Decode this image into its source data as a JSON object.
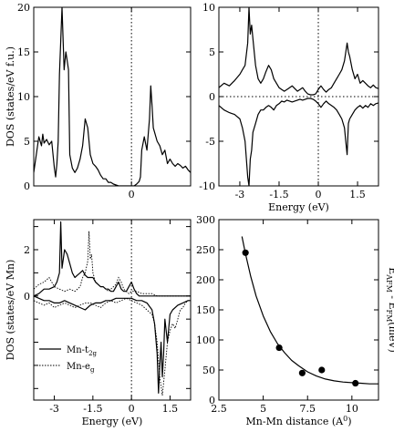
{
  "chart_data": [
    {
      "panel": "top-left",
      "type": "line",
      "ylabel": "DOS (states/eV f.u.)",
      "xlim": [
        -3.8,
        2.3
      ],
      "ylim": [
        0,
        20
      ],
      "xticks": [
        {
          "v": 0,
          "t": "0"
        }
      ],
      "yticks": [
        {
          "v": 0,
          "t": "0"
        },
        {
          "v": 5,
          "t": "5"
        },
        {
          "v": 10,
          "t": "10"
        },
        {
          "v": 15,
          "t": "15"
        },
        {
          "v": 20,
          "t": "20"
        }
      ],
      "vline": 0,
      "series": [
        {
          "style": "solid",
          "x": [
            -3.8,
            -3.7,
            -3.6,
            -3.5,
            -3.45,
            -3.4,
            -3.3,
            -3.2,
            -3.1,
            -3.0,
            -2.95,
            -2.9,
            -2.85,
            -2.8,
            -2.7,
            -2.62,
            -2.55,
            -2.5,
            -2.45,
            -2.4,
            -2.3,
            -2.2,
            -2.1,
            -2.0,
            -1.9,
            -1.8,
            -1.7,
            -1.6,
            -1.5,
            -1.4,
            -1.3,
            -1.2,
            -1.1,
            -1.0,
            -0.9,
            -0.8,
            -0.7,
            -0.6,
            -0.5,
            -0.4,
            -0.3,
            -0.2,
            -0.1,
            0.0,
            0.1,
            0.2,
            0.3,
            0.35,
            0.4,
            0.5,
            0.6,
            0.7,
            0.75,
            0.8,
            0.85,
            0.9,
            1.0,
            1.1,
            1.2,
            1.3,
            1.4,
            1.5,
            1.6,
            1.7,
            1.8,
            1.9,
            2.0,
            2.1,
            2.2,
            2.3
          ],
          "y": [
            1.5,
            3.5,
            5.5,
            4.5,
            5.8,
            4.8,
            5.2,
            4.6,
            5.0,
            2.0,
            1.0,
            2.5,
            5.0,
            12.5,
            20.0,
            13.0,
            15.0,
            14.0,
            13.0,
            3.5,
            2.0,
            1.5,
            2.0,
            3.0,
            4.5,
            7.5,
            6.5,
            3.5,
            2.5,
            2.2,
            1.8,
            1.2,
            0.8,
            0.8,
            0.4,
            0.4,
            0.2,
            0.1,
            0.0,
            0.0,
            0.0,
            0.0,
            0.0,
            0.0,
            0.0,
            0.2,
            0.5,
            1.0,
            4.0,
            5.5,
            4.0,
            7.5,
            11.2,
            9.0,
            6.5,
            6.0,
            5.0,
            4.5,
            3.5,
            4.0,
            2.5,
            3.0,
            2.5,
            2.2,
            2.5,
            2.3,
            2.0,
            2.2,
            1.8,
            1.5
          ]
        }
      ]
    },
    {
      "panel": "top-right",
      "type": "line",
      "xlabel": "Energy (eV)",
      "xlim": [
        -3.8,
        2.3
      ],
      "ylim": [
        -10,
        10
      ],
      "xticks": [
        {
          "v": -3,
          "t": "-3"
        },
        {
          "v": -1.5,
          "t": "-1.5"
        },
        {
          "v": 0,
          "t": "0"
        },
        {
          "v": 1.5,
          "t": "1.5"
        }
      ],
      "yticks": [
        {
          "v": -10,
          "t": "-10"
        },
        {
          "v": -5,
          "t": "-5"
        },
        {
          "v": 0,
          "t": "0"
        },
        {
          "v": 5,
          "t": "5"
        },
        {
          "v": 10,
          "t": "10"
        }
      ],
      "vline": 0,
      "hline": 0,
      "series": [
        {
          "style": "solid",
          "x": [
            -3.8,
            -3.6,
            -3.4,
            -3.2,
            -3.0,
            -2.9,
            -2.8,
            -2.7,
            -2.65,
            -2.6,
            -2.55,
            -2.5,
            -2.4,
            -2.3,
            -2.2,
            -2.1,
            -2.0,
            -1.9,
            -1.8,
            -1.7,
            -1.6,
            -1.5,
            -1.4,
            -1.3,
            -1.2,
            -1.1,
            -1.0,
            -0.9,
            -0.8,
            -0.7,
            -0.6,
            -0.5,
            -0.4,
            -0.3,
            -0.2,
            -0.1,
            0.0,
            0.1,
            0.2,
            0.3,
            0.4,
            0.5,
            0.6,
            0.7,
            0.8,
            0.9,
            1.0,
            1.1,
            1.15,
            1.2,
            1.3,
            1.4,
            1.5,
            1.6,
            1.7,
            1.8,
            1.9,
            2.0,
            2.1,
            2.2,
            2.3
          ],
          "y": [
            1.0,
            1.5,
            1.2,
            1.8,
            2.5,
            3.0,
            3.5,
            6.0,
            10.0,
            7.0,
            8.0,
            6.5,
            3.5,
            2.0,
            1.5,
            2.0,
            2.8,
            3.5,
            3.0,
            2.0,
            1.5,
            1.0,
            0.8,
            0.6,
            0.8,
            1.0,
            1.2,
            0.9,
            0.6,
            0.8,
            1.0,
            0.6,
            0.3,
            0.2,
            0.2,
            0.3,
            0.8,
            1.2,
            0.8,
            0.5,
            0.8,
            1.0,
            1.5,
            2.0,
            2.5,
            3.0,
            4.0,
            6.0,
            5.0,
            4.5,
            3.0,
            2.0,
            2.5,
            1.5,
            1.8,
            1.5,
            1.2,
            1.0,
            1.3,
            1.0,
            0.9
          ]
        },
        {
          "style": "solid",
          "x": [
            -3.8,
            -3.6,
            -3.4,
            -3.2,
            -3.0,
            -2.9,
            -2.8,
            -2.7,
            -2.65,
            -2.6,
            -2.55,
            -2.5,
            -2.4,
            -2.3,
            -2.2,
            -2.1,
            -2.0,
            -1.9,
            -1.8,
            -1.7,
            -1.6,
            -1.5,
            -1.4,
            -1.3,
            -1.2,
            -1.1,
            -1.0,
            -0.9,
            -0.8,
            -0.7,
            -0.6,
            -0.5,
            -0.4,
            -0.3,
            -0.2,
            -0.1,
            0.0,
            0.1,
            0.2,
            0.3,
            0.4,
            0.5,
            0.6,
            0.7,
            0.8,
            0.9,
            1.0,
            1.05,
            1.1,
            1.15,
            1.2,
            1.3,
            1.4,
            1.5,
            1.6,
            1.7,
            1.8,
            1.9,
            2.0,
            2.1,
            2.2,
            2.3
          ],
          "y": [
            -1.0,
            -1.5,
            -1.8,
            -2.0,
            -2.5,
            -3.5,
            -5.0,
            -9.0,
            -10.0,
            -7.0,
            -6.0,
            -4.0,
            -3.0,
            -2.0,
            -1.5,
            -1.5,
            -1.2,
            -1.0,
            -1.2,
            -1.5,
            -1.0,
            -0.8,
            -0.5,
            -0.6,
            -0.4,
            -0.5,
            -0.6,
            -0.5,
            -0.4,
            -0.3,
            -0.4,
            -0.3,
            -0.2,
            -0.2,
            -0.3,
            -0.5,
            -0.8,
            -1.2,
            -0.8,
            -0.5,
            -0.8,
            -1.0,
            -1.2,
            -1.5,
            -2.0,
            -2.5,
            -3.5,
            -5.0,
            -6.5,
            -3.0,
            -2.5,
            -2.0,
            -1.5,
            -1.2,
            -1.0,
            -1.3,
            -1.0,
            -1.2,
            -0.8,
            -1.0,
            -0.8,
            -0.7
          ]
        }
      ]
    },
    {
      "panel": "bottom-left",
      "type": "line",
      "xlabel": "Energy (eV)",
      "ylabel": "DOS (states/eV Mn)",
      "xlim": [
        -3.8,
        2.3
      ],
      "ylim": [
        -4.5,
        3.3
      ],
      "xticks": [
        {
          "v": -3,
          "t": "-3"
        },
        {
          "v": -1.5,
          "t": "-1.5"
        },
        {
          "v": 0,
          "t": "0"
        },
        {
          "v": 1.5,
          "t": "1.5"
        }
      ],
      "yticks": [
        {
          "v": -4,
          "t": ""
        },
        {
          "v": -3,
          "t": ""
        },
        {
          "v": -2,
          "t": ""
        },
        {
          "v": -1,
          "t": ""
        },
        {
          "v": 0,
          "t": "0"
        },
        {
          "v": 1,
          "t": ""
        },
        {
          "v": 2,
          "t": "2"
        },
        {
          "v": 3,
          "t": ""
        }
      ],
      "vline": 0,
      "legend": [
        "Mn-t2g",
        "Mn-eg"
      ],
      "series": [
        {
          "name": "Mn-t2g",
          "style": "solid",
          "x": [
            -3.8,
            -3.6,
            -3.4,
            -3.2,
            -3.0,
            -2.9,
            -2.8,
            -2.75,
            -2.7,
            -2.65,
            -2.6,
            -2.5,
            -2.4,
            -2.3,
            -2.2,
            -2.1,
            -2.0,
            -1.9,
            -1.8,
            -1.7,
            -1.6,
            -1.5,
            -1.4,
            -1.3,
            -1.2,
            -1.1,
            -1.0,
            -0.9,
            -0.8,
            -0.7,
            -0.6,
            -0.5,
            -0.4,
            -0.3,
            -0.2,
            -0.1,
            0.0,
            0.1,
            0.2,
            0.3,
            0.4,
            0.5,
            0.6,
            0.7,
            0.8,
            0.9,
            1.0,
            1.1,
            1.2,
            1.3,
            1.4,
            1.5,
            1.6,
            1.7,
            1.8,
            1.9,
            2.0,
            2.1,
            2.2,
            2.3
          ],
          "y": [
            0.0,
            0.1,
            0.3,
            0.3,
            0.4,
            0.6,
            1.0,
            3.2,
            1.2,
            1.6,
            2.0,
            1.8,
            1.4,
            1.0,
            0.8,
            0.9,
            1.0,
            1.1,
            0.9,
            0.8,
            0.8,
            0.8,
            0.6,
            0.5,
            0.4,
            0.4,
            0.3,
            0.3,
            0.2,
            0.2,
            0.4,
            0.6,
            0.3,
            0.2,
            0.2,
            0.4,
            0.6,
            0.3,
            0.1,
            0.0,
            0.0,
            0.0,
            0.0,
            0.0,
            0.0,
            0.0,
            0.0,
            0.0,
            0.0,
            0.0,
            0.0,
            0.0,
            0.0,
            0.0,
            0.0,
            0.0,
            0.0,
            0.0,
            0.0,
            0.0
          ]
        },
        {
          "name": "Mn-t2g",
          "style": "solid",
          "x": [
            -3.8,
            -3.6,
            -3.4,
            -3.2,
            -3.0,
            -2.8,
            -2.6,
            -2.4,
            -2.2,
            -2.0,
            -1.8,
            -1.6,
            -1.4,
            -1.2,
            -1.0,
            -0.8,
            -0.6,
            -0.4,
            -0.2,
            0.0,
            0.2,
            0.4,
            0.6,
            0.8,
            0.9,
            1.0,
            1.05,
            1.1,
            1.15,
            1.2,
            1.25,
            1.3,
            1.35,
            1.4,
            1.5,
            1.6,
            1.8,
            2.0,
            2.2,
            2.3
          ],
          "y": [
            0.0,
            -0.1,
            -0.2,
            -0.2,
            -0.3,
            -0.3,
            -0.2,
            -0.3,
            -0.4,
            -0.5,
            -0.6,
            -0.4,
            -0.3,
            -0.3,
            -0.2,
            -0.2,
            -0.1,
            -0.1,
            -0.1,
            -0.1,
            -0.2,
            -0.2,
            -0.3,
            -0.6,
            -1.2,
            -2.5,
            -4.2,
            -3.0,
            -2.0,
            -3.5,
            -2.5,
            -1.0,
            -1.5,
            -2.0,
            -0.8,
            -0.6,
            -0.4,
            -0.3,
            -0.2,
            -0.2
          ]
        },
        {
          "name": "Mn-eg",
          "style": "dotted",
          "x": [
            -3.8,
            -3.6,
            -3.4,
            -3.2,
            -3.0,
            -2.8,
            -2.6,
            -2.4,
            -2.2,
            -2.0,
            -1.9,
            -1.8,
            -1.7,
            -1.65,
            -1.6,
            -1.55,
            -1.5,
            -1.4,
            -1.3,
            -1.2,
            -1.1,
            -1.0,
            -0.9,
            -0.8,
            -0.7,
            -0.6,
            -0.5,
            -0.4,
            -0.3,
            -0.2,
            -0.1,
            0.0,
            0.2,
            0.4,
            0.6,
            0.8,
            1.0,
            1.2,
            1.4,
            1.6,
            1.8,
            2.0,
            2.3
          ],
          "y": [
            0.3,
            0.5,
            0.6,
            0.8,
            0.4,
            0.3,
            0.2,
            0.3,
            0.2,
            0.4,
            0.8,
            1.0,
            1.5,
            2.8,
            1.6,
            1.8,
            1.0,
            0.6,
            0.5,
            0.4,
            0.4,
            0.3,
            0.2,
            0.3,
            0.4,
            0.5,
            0.8,
            0.6,
            0.3,
            0.2,
            0.1,
            0.2,
            0.2,
            0.1,
            0.1,
            0.1,
            0.0,
            0.0,
            0.0,
            0.0,
            0.0,
            0.0,
            0.0
          ]
        },
        {
          "name": "Mn-eg",
          "style": "dotted",
          "x": [
            -3.8,
            -3.6,
            -3.4,
            -3.2,
            -3.0,
            -2.8,
            -2.6,
            -2.4,
            -2.2,
            -2.0,
            -1.8,
            -1.6,
            -1.4,
            -1.2,
            -1.0,
            -0.8,
            -0.6,
            -0.4,
            -0.2,
            0.0,
            0.2,
            0.4,
            0.6,
            0.8,
            0.9,
            1.0,
            1.1,
            1.2,
            1.3,
            1.4,
            1.5,
            1.6,
            1.7,
            1.8,
            1.9,
            2.0,
            2.1,
            2.2,
            2.3
          ],
          "y": [
            -0.2,
            -0.3,
            -0.4,
            -0.3,
            -0.5,
            -0.4,
            -0.3,
            -0.4,
            -0.5,
            -0.4,
            -0.3,
            -0.3,
            -0.4,
            -0.5,
            -0.3,
            -0.2,
            -0.3,
            -0.2,
            -0.1,
            -0.2,
            -0.3,
            -0.4,
            -0.6,
            -0.8,
            -1.2,
            -2.0,
            -3.5,
            -4.3,
            -3.2,
            -2.0,
            -1.5,
            -1.2,
            -1.4,
            -1.0,
            -0.6,
            -0.5,
            -0.3,
            -0.2,
            -0.2
          ]
        }
      ]
    },
    {
      "panel": "bottom-right",
      "type": "scatter",
      "xlabel": "Mn-Mn distance (A⁰)",
      "ylabel": "E_AFM - E_FM (meV)",
      "xlim": [
        2.5,
        11.5
      ],
      "ylim": [
        0,
        300
      ],
      "xticks": [
        {
          "v": 2.5,
          "t": "2.5"
        },
        {
          "v": 5,
          "t": "5"
        },
        {
          "v": 7.5,
          "t": "7.5"
        },
        {
          "v": 10,
          "t": "10"
        }
      ],
      "yticks": [
        {
          "v": 0,
          "t": "0"
        },
        {
          "v": 50,
          "t": "50"
        },
        {
          "v": 100,
          "t": "100"
        },
        {
          "v": 150,
          "t": "150"
        },
        {
          "v": 200,
          "t": "200"
        },
        {
          "v": 250,
          "t": "250"
        },
        {
          "v": 300,
          "t": "300"
        }
      ],
      "points": [
        {
          "x": 4.0,
          "y": 245
        },
        {
          "x": 5.9,
          "y": 87
        },
        {
          "x": 7.2,
          "y": 45
        },
        {
          "x": 8.3,
          "y": 50
        },
        {
          "x": 10.2,
          "y": 28
        }
      ],
      "fit": {
        "x": [
          3.8,
          4.0,
          4.3,
          4.6,
          5.0,
          5.4,
          5.8,
          6.2,
          6.6,
          7.0,
          7.5,
          8.0,
          8.5,
          9.0,
          9.5,
          10.0,
          10.5,
          11.0,
          11.5
        ],
        "y": [
          272,
          243,
          205,
          173,
          140,
          114,
          94,
          79,
          66,
          57,
          47,
          40,
          35,
          32,
          30,
          29,
          28,
          27,
          27
        ]
      }
    }
  ]
}
